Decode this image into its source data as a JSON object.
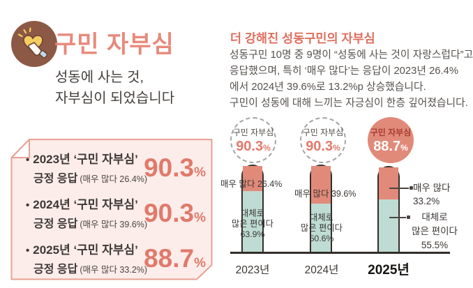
{
  "colors": {
    "accent_coral": "#e8897b",
    "heading_red": "#df6f5e",
    "number_coral": "#e07a6b",
    "bar_outline": "#332d29",
    "card_border": "#e8a193",
    "card_background": "#fcedea",
    "dark_text": "#3c3836"
  },
  "brand": {
    "icon": "heart-tap-icon",
    "title": "구민 자부심",
    "subtitle_line1": "성동에 사는 것,",
    "subtitle_line2": "자부심이 되었습니다"
  },
  "summary_card": {
    "bullet": "•",
    "items": [
      {
        "title": "2023년 ‘구민 자부심’",
        "label": "긍정 응답",
        "detail": "(매우 많다 26.4%)",
        "value": "90.3",
        "unit": "%"
      },
      {
        "title": "2024년 ‘구민 자부심’",
        "label": "긍정 응답",
        "detail": "(매우 많다 39.6%)",
        "value": "90.3",
        "unit": "%"
      },
      {
        "title": "2025년 ‘구민 자부심’",
        "label": "긍정 응답",
        "detail": "(매우 많다 33.2%)",
        "value": "88.7",
        "unit": "%"
      }
    ]
  },
  "article": {
    "heading": "더 강해진 성동구민의 자부심",
    "line1": "성동구민 10명 중 9명이 “성동에 사는 것이 자랑스럽다”고",
    "line2": "응답했으며, 특히 ‘매우 많다’는 응답이 2023년 26.4%",
    "line3": "에서 2024년 39.6%로 13.2%p 상승했습니다.",
    "line4": "구민이 성동에 대해 느끼는 자긍심이 한층 깊어졌습니다."
  },
  "chart_data": {
    "type": "bar",
    "stacked": true,
    "categories": [
      "2023년",
      "2024년",
      "2025년"
    ],
    "series": [
      {
        "name": "매우 많다",
        "values": [
          26.4,
          39.6,
          33.2
        ],
        "color": "#e18a7a"
      },
      {
        "name": "대체로 많은 편이다",
        "values": [
          63.9,
          50.6,
          55.5
        ],
        "color": "#bfdcd4"
      }
    ],
    "totals": [
      90.3,
      90.3,
      88.7
    ],
    "total_label": "구민 자부심",
    "totals_display": [
      {
        "value": "90.3",
        "unit": "%"
      },
      {
        "value": "90.3",
        "unit": "%"
      },
      {
        "value": "88.7",
        "unit": "%"
      }
    ],
    "highlight_index": 2,
    "legend_position": "none",
    "grid": false,
    "annotations": {
      "bar1_top": "매우 많다 26.4%",
      "bar2_top": "매우 많다 39.6%",
      "bar1_inside_1": "대체로",
      "bar1_inside_2": "많은 편이다",
      "bar1_inside_3": "63.9%",
      "bar2_inside_1": "대체로",
      "bar2_inside_2": "많은 편이다",
      "bar2_inside_3": "50.6%",
      "bar3_right_top_1": "매우 많다",
      "bar3_right_top_2": "33.2%",
      "bar3_right_bottom_1": "대체로",
      "bar3_right_bottom_2": "많은 편이다",
      "bar3_right_bottom_3": "55.5%"
    }
  }
}
